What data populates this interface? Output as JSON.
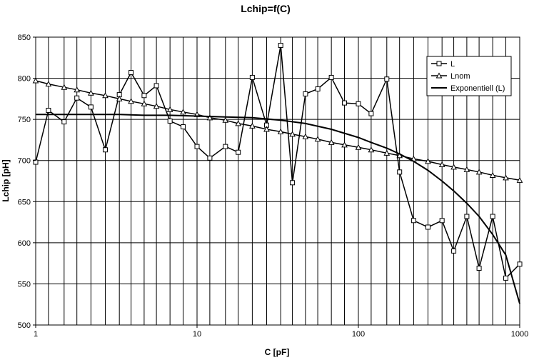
{
  "chart_data": {
    "type": "line",
    "title": "Lchip=f(C)",
    "xlabel": "C [pF]",
    "ylabel": "Lchip [pH]",
    "x_scale": "log",
    "xlim": [
      1,
      1000
    ],
    "ylim": [
      500,
      850
    ],
    "y_ticks": [
      500,
      550,
      600,
      650,
      700,
      750,
      800,
      850
    ],
    "x_tick_labels": [
      {
        "value": 1,
        "label": "1"
      },
      {
        "value": 10,
        "label": "10"
      },
      {
        "value": 100,
        "label": "100"
      },
      {
        "value": 1000,
        "label": "1000"
      }
    ],
    "x_gridlines": [
      1,
      1.2,
      1.5,
      1.8,
      2.2,
      2.7,
      3.3,
      3.9,
      4.7,
      5.6,
      6.8,
      8.2,
      10,
      12,
      15,
      18,
      22,
      27,
      33,
      39,
      47,
      56,
      68,
      82,
      100,
      120,
      150,
      180,
      220,
      270,
      330,
      390,
      470,
      560,
      680,
      820,
      1000
    ],
    "grid": true,
    "legend_position": "top-right",
    "series": [
      {
        "name": "L",
        "marker": "square",
        "points": [
          {
            "x": 1,
            "y": 698
          },
          {
            "x": 1.2,
            "y": 761
          },
          {
            "x": 1.5,
            "y": 747
          },
          {
            "x": 1.8,
            "y": 776
          },
          {
            "x": 2.2,
            "y": 765
          },
          {
            "x": 2.7,
            "y": 713
          },
          {
            "x": 3.3,
            "y": 780
          },
          {
            "x": 3.9,
            "y": 807
          },
          {
            "x": 4.7,
            "y": 779
          },
          {
            "x": 5.6,
            "y": 791
          },
          {
            "x": 6.8,
            "y": 748
          },
          {
            "x": 8.2,
            "y": 741
          },
          {
            "x": 10,
            "y": 717
          },
          {
            "x": 12,
            "y": 703
          },
          {
            "x": 15,
            "y": 717
          },
          {
            "x": 18,
            "y": 710
          },
          {
            "x": 22,
            "y": 801
          },
          {
            "x": 27,
            "y": 743
          },
          {
            "x": 33,
            "y": 840
          },
          {
            "x": 39,
            "y": 673
          },
          {
            "x": 47,
            "y": 781
          },
          {
            "x": 56,
            "y": 787
          },
          {
            "x": 68,
            "y": 801
          },
          {
            "x": 82,
            "y": 770
          },
          {
            "x": 100,
            "y": 769
          },
          {
            "x": 120,
            "y": 757
          },
          {
            "x": 150,
            "y": 799
          },
          {
            "x": 180,
            "y": 686
          },
          {
            "x": 220,
            "y": 627
          },
          {
            "x": 270,
            "y": 619
          },
          {
            "x": 330,
            "y": 627
          },
          {
            "x": 390,
            "y": 590
          },
          {
            "x": 470,
            "y": 632
          },
          {
            "x": 560,
            "y": 569
          },
          {
            "x": 680,
            "y": 632
          },
          {
            "x": 820,
            "y": 557
          },
          {
            "x": 1000,
            "y": 574
          }
        ]
      },
      {
        "name": "Lnom",
        "marker": "triangle",
        "points": [
          {
            "x": 1,
            "y": 797
          },
          {
            "x": 1.2,
            "y": 793
          },
          {
            "x": 1.5,
            "y": 789
          },
          {
            "x": 1.8,
            "y": 786
          },
          {
            "x": 2.2,
            "y": 782
          },
          {
            "x": 2.7,
            "y": 779
          },
          {
            "x": 3.3,
            "y": 775
          },
          {
            "x": 3.9,
            "y": 772
          },
          {
            "x": 4.7,
            "y": 769
          },
          {
            "x": 5.6,
            "y": 766
          },
          {
            "x": 6.8,
            "y": 762
          },
          {
            "x": 8.2,
            "y": 759
          },
          {
            "x": 10,
            "y": 756
          },
          {
            "x": 12,
            "y": 752
          },
          {
            "x": 15,
            "y": 749
          },
          {
            "x": 18,
            "y": 745
          },
          {
            "x": 22,
            "y": 742
          },
          {
            "x": 27,
            "y": 738
          },
          {
            "x": 33,
            "y": 735
          },
          {
            "x": 39,
            "y": 732
          },
          {
            "x": 47,
            "y": 729
          },
          {
            "x": 56,
            "y": 726
          },
          {
            "x": 68,
            "y": 722
          },
          {
            "x": 82,
            "y": 719
          },
          {
            "x": 100,
            "y": 716
          },
          {
            "x": 120,
            "y": 713
          },
          {
            "x": 150,
            "y": 709
          },
          {
            "x": 180,
            "y": 706
          },
          {
            "x": 220,
            "y": 702
          },
          {
            "x": 270,
            "y": 699
          },
          {
            "x": 330,
            "y": 695
          },
          {
            "x": 390,
            "y": 692
          },
          {
            "x": 470,
            "y": 689
          },
          {
            "x": 560,
            "y": 686
          },
          {
            "x": 680,
            "y": 682
          },
          {
            "x": 820,
            "y": 679
          },
          {
            "x": 1000,
            "y": 676
          }
        ]
      },
      {
        "name": "Exponentiell (L)",
        "marker": "none",
        "points": [
          {
            "x": 1,
            "y": 756
          },
          {
            "x": 1.5,
            "y": 756
          },
          {
            "x": 2.2,
            "y": 756
          },
          {
            "x": 3.3,
            "y": 756
          },
          {
            "x": 4.7,
            "y": 755
          },
          {
            "x": 6.8,
            "y": 755
          },
          {
            "x": 10,
            "y": 754
          },
          {
            "x": 15,
            "y": 753
          },
          {
            "x": 22,
            "y": 752
          },
          {
            "x": 33,
            "y": 749
          },
          {
            "x": 47,
            "y": 745
          },
          {
            "x": 68,
            "y": 738
          },
          {
            "x": 100,
            "y": 728
          },
          {
            "x": 120,
            "y": 722
          },
          {
            "x": 150,
            "y": 715
          },
          {
            "x": 180,
            "y": 708
          },
          {
            "x": 220,
            "y": 699
          },
          {
            "x": 270,
            "y": 688
          },
          {
            "x": 330,
            "y": 675
          },
          {
            "x": 390,
            "y": 663
          },
          {
            "x": 470,
            "y": 648
          },
          {
            "x": 560,
            "y": 632
          },
          {
            "x": 680,
            "y": 610
          },
          {
            "x": 820,
            "y": 585
          },
          {
            "x": 1000,
            "y": 526
          }
        ]
      }
    ]
  }
}
